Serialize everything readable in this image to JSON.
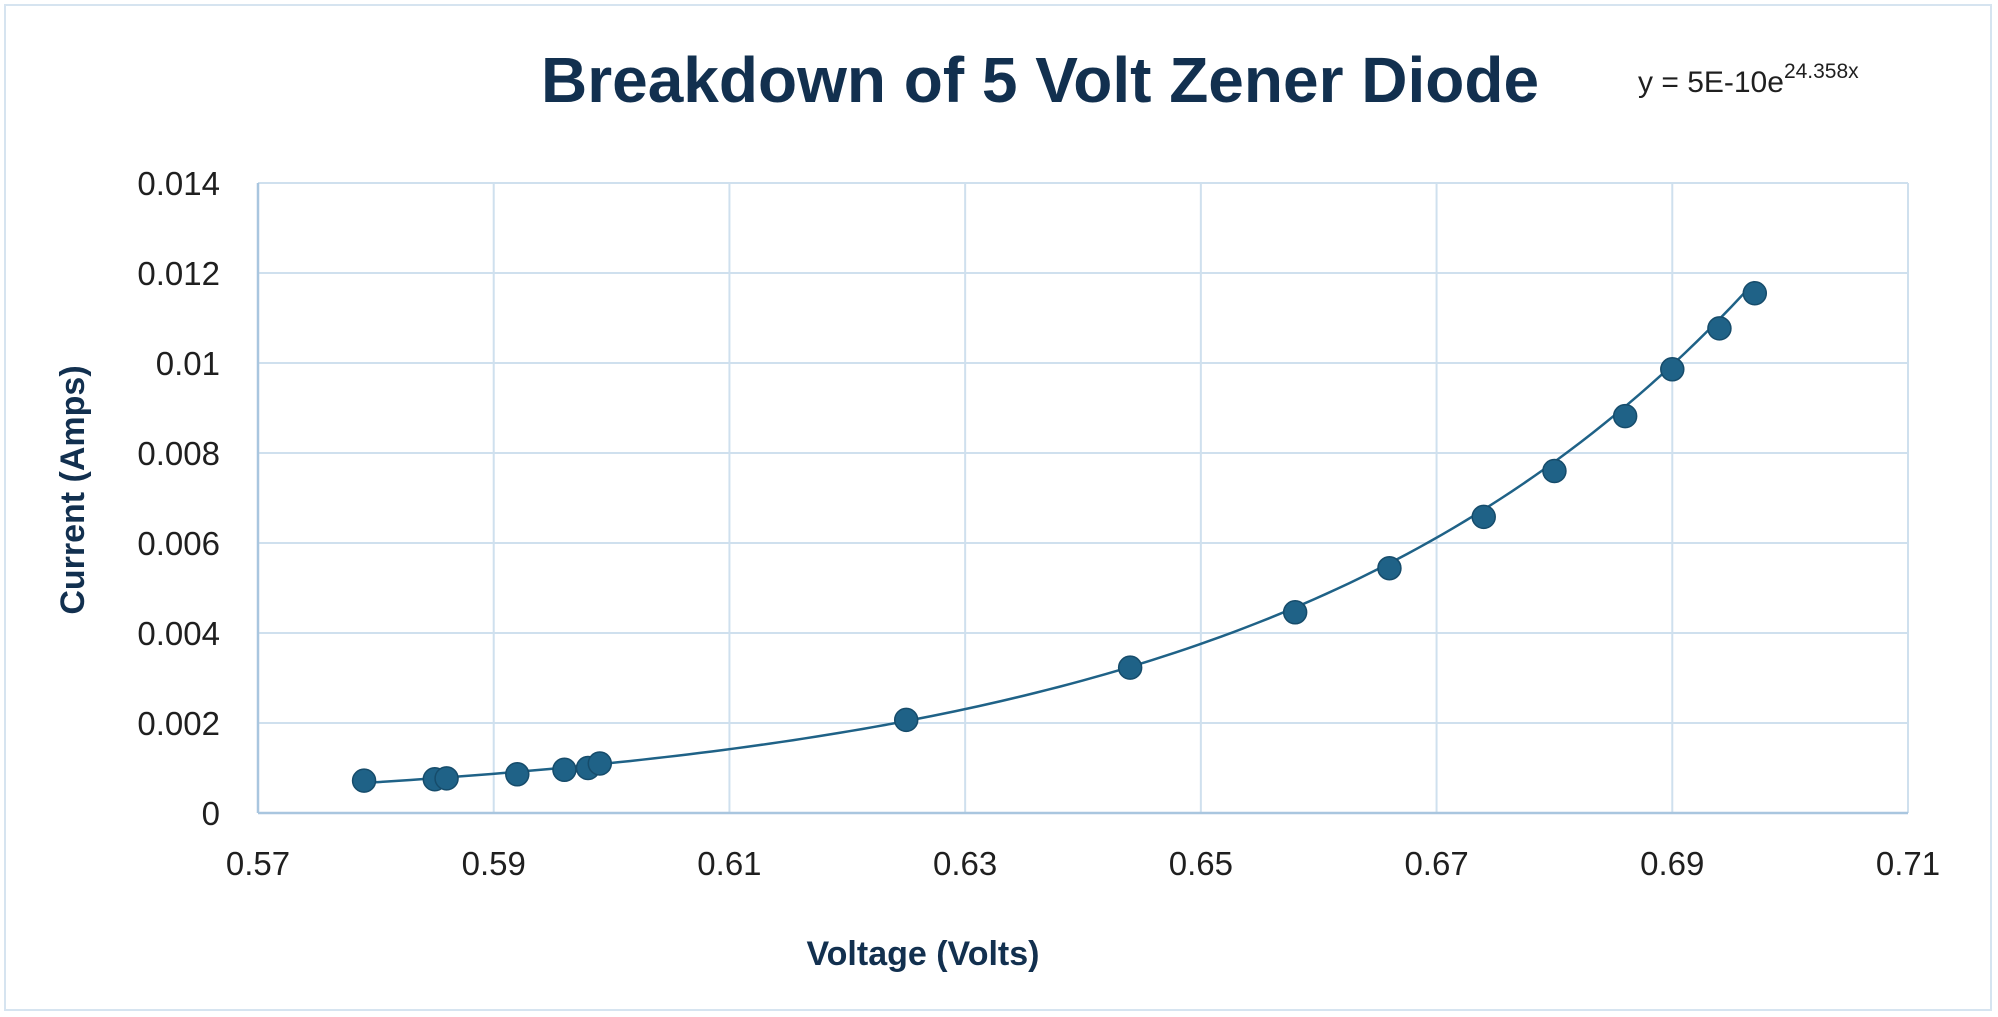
{
  "chart_data": {
    "type": "scatter",
    "title": "Breakdown of 5 Volt Zener Diode",
    "xlabel": "Voltage (Volts)",
    "ylabel": "Current (Amps)",
    "xlim": [
      0.57,
      0.71
    ],
    "ylim": [
      0,
      0.014
    ],
    "x_ticks": [
      "0.57",
      "0.59",
      "0.61",
      "0.63",
      "0.65",
      "0.67",
      "0.69",
      "0.71"
    ],
    "y_ticks": [
      "0",
      "0.002",
      "0.004",
      "0.006",
      "0.008",
      "0.01",
      "0.012",
      "0.014"
    ],
    "grid": true,
    "legend": "none",
    "trendline": {
      "type": "exponential",
      "a": 5e-10,
      "b": 24.358,
      "equation_text": "y = 5E-10e",
      "equation_exponent": "24.358x"
    },
    "series": [
      {
        "x": [
          0.579,
          0.585,
          0.586,
          0.592,
          0.596,
          0.598,
          0.599,
          0.625,
          0.644,
          0.658,
          0.666,
          0.674,
          0.68,
          0.686,
          0.69,
          0.694,
          0.697
        ],
        "y": [
          0.00072,
          0.00075,
          0.00077,
          0.00086,
          0.00096,
          0.001,
          0.0011,
          0.00207,
          0.00323,
          0.00446,
          0.00544,
          0.00658,
          0.0076,
          0.00882,
          0.00986,
          0.01077,
          0.01155
        ]
      }
    ],
    "colors": {
      "marker": "#1f6287",
      "marker_stroke": "#164c6b",
      "trendline": "#1f6287",
      "grid": "#cfe0ee",
      "axis": "#a9c6df",
      "title": "#12304f"
    }
  }
}
